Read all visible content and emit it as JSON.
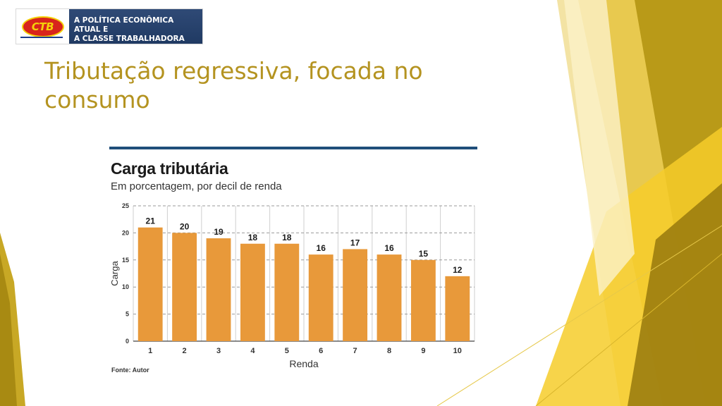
{
  "banner": {
    "logo_text": "CTB",
    "line1": "A POLÍTICA ECONÔMICA ATUAL E",
    "line2": "A CLASSE TRABALHADORA"
  },
  "slide": {
    "title": "Tributação regressiva, focada no consumo"
  },
  "colors": {
    "title": "#b49320",
    "bar": "#e8993a",
    "banner": "#23406b"
  },
  "chart_data": {
    "type": "bar",
    "title": "Carga tributária",
    "subtitle": "Em porcentagem, por decil de renda",
    "xlabel": "Renda",
    "ylabel": "Carga",
    "categories": [
      "1",
      "2",
      "3",
      "4",
      "5",
      "6",
      "7",
      "8",
      "9",
      "10"
    ],
    "values": [
      21,
      20,
      19,
      18,
      18,
      16,
      17,
      16,
      15,
      12
    ],
    "ylim": [
      0,
      25
    ],
    "yticks": [
      0,
      5,
      10,
      15,
      20,
      25
    ],
    "grid": true,
    "source": "Fonte: Autor"
  }
}
